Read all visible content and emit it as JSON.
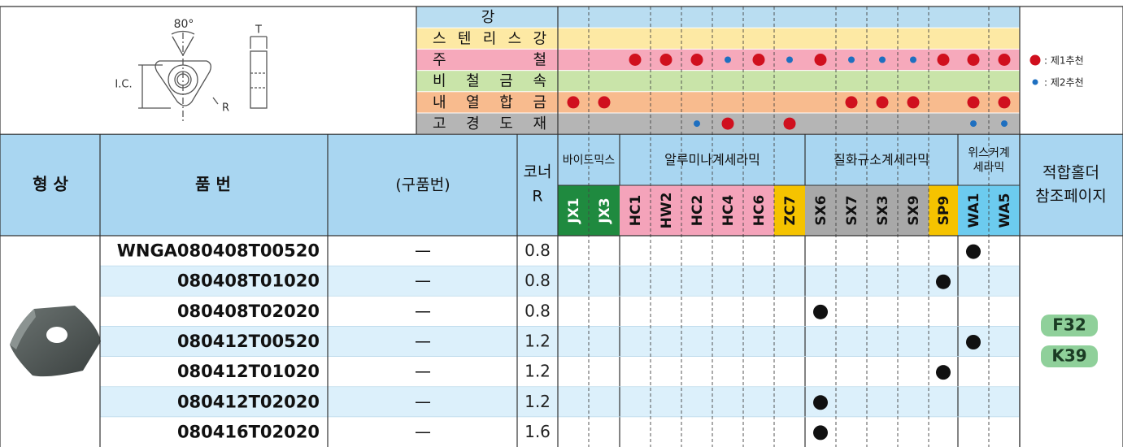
{
  "diagram": {
    "angle": "80°",
    "ic": "I.C.",
    "radius": "R",
    "thickness": "T"
  },
  "materials": [
    {
      "name": "강",
      "bg": "#b9ddf1",
      "first": [],
      "second": []
    },
    {
      "name": "스텐리스강",
      "bg": "#fde9a4",
      "first": [],
      "second": []
    },
    {
      "name": "주철",
      "bg": "#f6a9bb",
      "first": [
        "HC1",
        "HW2",
        "HC2",
        "HC6",
        "SX6",
        "SP9",
        "WA1",
        "WA5"
      ],
      "second": [
        "HC4",
        "ZC7",
        "SX7",
        "SX3",
        "SX9"
      ]
    },
    {
      "name": "비철금속",
      "bg": "#c9e4a9",
      "first": [],
      "second": []
    },
    {
      "name": "내열합금",
      "bg": "#f8bb8e",
      "first": [
        "JX1",
        "JX3",
        "SX7",
        "SX3",
        "SX9",
        "WA1",
        "WA5"
      ],
      "second": []
    },
    {
      "name": "고경도재",
      "bg": "#b5b5b5",
      "first": [
        "HC4",
        "ZC7"
      ],
      "second": [
        "HC2",
        "WA1",
        "WA5"
      ]
    }
  ],
  "legend": {
    "first": ": 제1추천",
    "second": ": 제2추천"
  },
  "header": {
    "shape": "형 상",
    "part": "품 번",
    "old": "(구품번)",
    "corner": [
      "코너",
      "R"
    ],
    "holder": [
      "적합홀더",
      "참조페이지"
    ]
  },
  "groups": [
    {
      "name": [
        "바이드믹스"
      ],
      "grades": [
        {
          "code": "JX1",
          "bg": "#1f8a3f",
          "fg": "#ffffff"
        },
        {
          "code": "JX3",
          "bg": "#1f8a3f",
          "fg": "#ffffff"
        }
      ]
    },
    {
      "name": [
        "알루미나계세라믹"
      ],
      "grades": [
        {
          "code": "HC1",
          "bg": "#f4a3ba",
          "fg": "#111111"
        },
        {
          "code": "HW2",
          "bg": "#f4a3ba",
          "fg": "#111111"
        },
        {
          "code": "HC2",
          "bg": "#f4a3ba",
          "fg": "#111111"
        },
        {
          "code": "HC4",
          "bg": "#f4a3ba",
          "fg": "#111111"
        },
        {
          "code": "HC6",
          "bg": "#f4a3ba",
          "fg": "#111111"
        },
        {
          "code": "ZC7",
          "bg": "#f5c300",
          "fg": "#111111"
        }
      ]
    },
    {
      "name": [
        "질화규소계세라믹"
      ],
      "grades": [
        {
          "code": "SX6",
          "bg": "#a8a8a8",
          "fg": "#111111"
        },
        {
          "code": "SX7",
          "bg": "#a8a8a8",
          "fg": "#111111"
        },
        {
          "code": "SX3",
          "bg": "#a8a8a8",
          "fg": "#111111"
        },
        {
          "code": "SX9",
          "bg": "#a8a8a8",
          "fg": "#111111"
        },
        {
          "code": "SP9",
          "bg": "#f5c300",
          "fg": "#111111"
        }
      ]
    },
    {
      "name": [
        "위스커계",
        "세라믹"
      ],
      "grades": [
        {
          "code": "WA1",
          "bg": "#6ccbef",
          "fg": "#111111"
        },
        {
          "code": "WA5",
          "bg": "#6ccbef",
          "fg": "#111111"
        }
      ]
    }
  ],
  "rows": [
    {
      "part": "WNGA080408T00520",
      "old": "—",
      "r": "0.8",
      "grades": [
        "WA1"
      ]
    },
    {
      "part": "080408T01020",
      "old": "—",
      "r": "0.8",
      "grades": [
        "SP9"
      ]
    },
    {
      "part": "080408T02020",
      "old": "—",
      "r": "0.8",
      "grades": [
        "SX6"
      ]
    },
    {
      "part": "080412T00520",
      "old": "—",
      "r": "1.2",
      "grades": [
        "WA1"
      ]
    },
    {
      "part": "080412T01020",
      "old": "—",
      "r": "1.2",
      "grades": [
        "SP9"
      ]
    },
    {
      "part": "080412T02020",
      "old": "—",
      "r": "1.2",
      "grades": [
        "SX6"
      ]
    },
    {
      "part": "080416T02020",
      "old": "—",
      "r": "1.6",
      "grades": [
        "SX6"
      ]
    }
  ],
  "holder_pages": [
    "F32",
    "K39"
  ]
}
